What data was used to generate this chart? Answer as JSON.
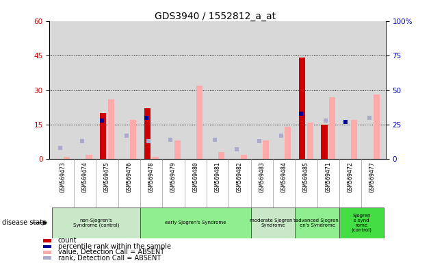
{
  "title": "GDS3940 / 1552812_a_at",
  "samples": [
    "GSM569473",
    "GSM569474",
    "GSM569475",
    "GSM569476",
    "GSM569478",
    "GSM569479",
    "GSM569480",
    "GSM569481",
    "GSM569482",
    "GSM569483",
    "GSM569484",
    "GSM569485",
    "GSM569471",
    "GSM569472",
    "GSM569477"
  ],
  "count": [
    0,
    0,
    20,
    0,
    22,
    0,
    0,
    0,
    0,
    0,
    0,
    44,
    15,
    0,
    0
  ],
  "percentile_rank": [
    null,
    null,
    28,
    null,
    30,
    null,
    null,
    null,
    null,
    null,
    null,
    33,
    null,
    27,
    null
  ],
  "value_absent": [
    1,
    2,
    26,
    17,
    1,
    8,
    32,
    3,
    2,
    8,
    14,
    16,
    27,
    17,
    28
  ],
  "rank_absent": [
    8,
    13,
    null,
    17,
    13,
    14,
    null,
    14,
    7,
    13,
    17,
    null,
    28,
    null,
    30
  ],
  "groups": [
    {
      "label": "non-Sjogren's\nSyndrome (control)",
      "start": 0,
      "end": 4,
      "color": "#c8e8c8"
    },
    {
      "label": "early Sjogren's Syndrome",
      "start": 4,
      "end": 9,
      "color": "#90ee90"
    },
    {
      "label": "moderate Sjogren's\nSyndrome",
      "start": 9,
      "end": 11,
      "color": "#c8e8c8"
    },
    {
      "label": "advanced Sjogren\nen's Syndrome",
      "start": 11,
      "end": 13,
      "color": "#90ee90"
    },
    {
      "label": "Sjogren\ns synd\nrome\n(control)",
      "start": 13,
      "end": 15,
      "color": "#44dd44"
    }
  ],
  "ylim_left": [
    0,
    60
  ],
  "ylim_right": [
    0,
    100
  ],
  "yticks_left": [
    0,
    15,
    30,
    45,
    60
  ],
  "yticks_right": [
    0,
    25,
    50,
    75,
    100
  ],
  "ytick_labels_left": [
    "0",
    "15",
    "30",
    "45",
    "60"
  ],
  "ytick_labels_right": [
    "0%",
    "25",
    "50",
    "75",
    "100%"
  ],
  "color_count": "#cc0000",
  "color_rank": "#000099",
  "color_value_absent": "#ffaaaa",
  "color_rank_absent": "#aaaacc",
  "bg_color": "#d8d8d8",
  "disease_state_label": "disease state"
}
